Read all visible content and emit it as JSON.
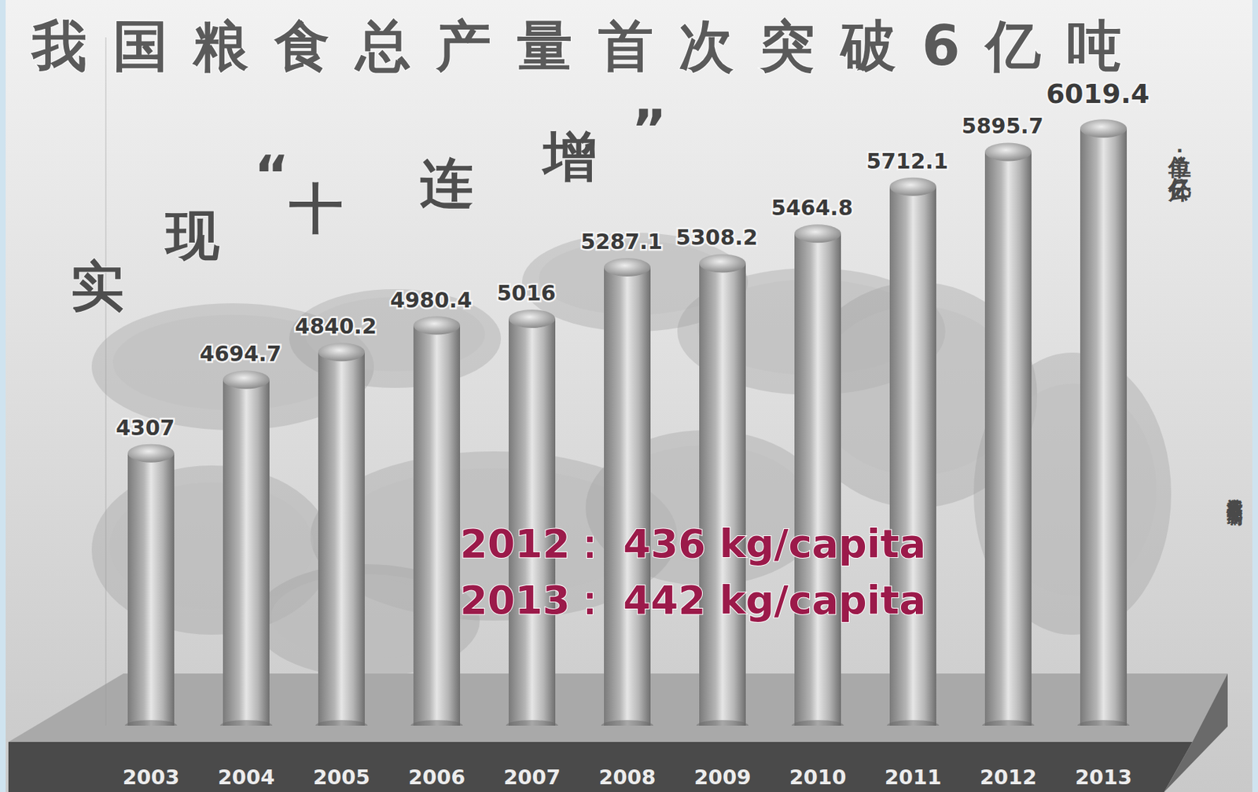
{
  "chart_data": {
    "type": "bar",
    "title": "我国粮食总产量首次突破6亿吨",
    "subtitle": "实现“十连增”",
    "unit_label": "单位：亿公斤",
    "source": "新华社记者 郑悦 编制",
    "annotations": [
      "2012： 436 kg/capita",
      "2013： 442 kg/capita"
    ],
    "categories": [
      "2003",
      "2004",
      "2005",
      "2006",
      "2007",
      "2008",
      "2009",
      "2010",
      "2011",
      "2012",
      "2013"
    ],
    "values": [
      4307,
      4694.7,
      4840.2,
      4980.4,
      5016,
      5287.1,
      5308.2,
      5464.8,
      5712.1,
      5895.7,
      6019.4
    ],
    "color": "#b5b5b5",
    "ylim": [
      2870,
      6500
    ],
    "data_labels": true,
    "tick_labels": "x",
    "grid": false
  }
}
